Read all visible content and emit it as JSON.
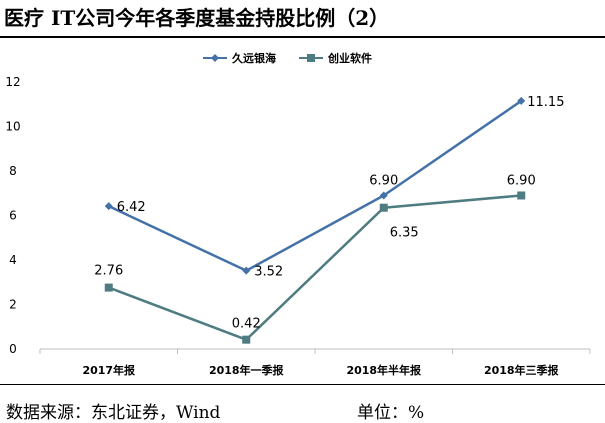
{
  "title": "医疗 IT公司今年各季度基金持股比例（2）",
  "source_text": "数据来源：东北证券，Wind",
  "unit_text": "单位：%",
  "colors": {
    "series_1": "#4472A8",
    "series_2": "#4E7C80",
    "axis": "#BFBFBF",
    "text": "#000000"
  },
  "chart_data": {
    "type": "line",
    "categories": [
      "2017年报",
      "2018年一季报",
      "2018年半年报",
      "2018年三季报"
    ],
    "series": [
      {
        "name": "久远银海",
        "values": [
          6.42,
          3.52,
          6.9,
          11.15
        ],
        "labels": [
          "6.42",
          "3.52",
          "6.90",
          "11.15"
        ],
        "marker": "diamond"
      },
      {
        "name": "创业软件",
        "values": [
          2.76,
          0.42,
          6.35,
          6.9
        ],
        "labels": [
          "2.76",
          "0.42",
          "6.35",
          "6.90"
        ],
        "marker": "square"
      }
    ],
    "ylim": [
      0,
      12
    ],
    "yticks": [
      0,
      2,
      4,
      6,
      8,
      10,
      12
    ],
    "legend": "top-center",
    "grid": false
  }
}
